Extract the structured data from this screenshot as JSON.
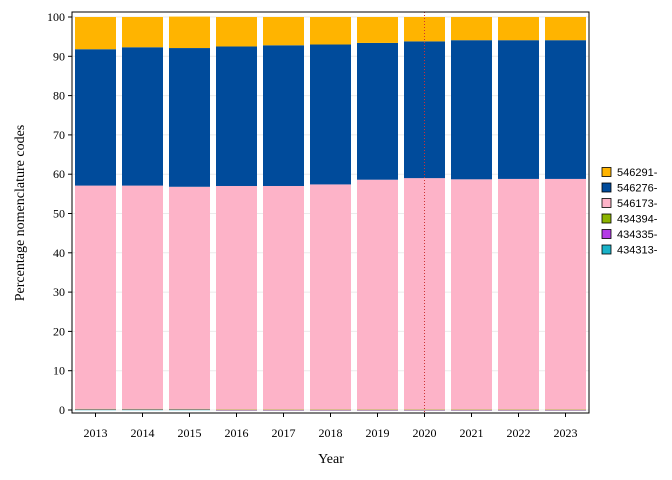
{
  "chart_data": {
    "type": "bar",
    "stacked": true,
    "xlabel": "Year",
    "ylabel": "Percentage nomenclature codes",
    "ylim": [
      0,
      100
    ],
    "yticks": [
      0,
      10,
      20,
      30,
      40,
      50,
      60,
      70,
      80,
      90,
      100
    ],
    "grid": true,
    "legend_position": "right",
    "reference_line": {
      "x": "2020",
      "color": "#cc3333",
      "style": "dotted"
    },
    "categories": [
      "2013",
      "2014",
      "2015",
      "2016",
      "2017",
      "2018",
      "2019",
      "2020",
      "2021",
      "2022",
      "2023"
    ],
    "series": [
      {
        "name": "434313-",
        "color": "#1ab2c8",
        "values": [
          0.1,
          0.1,
          0.1,
          0.0,
          0.0,
          0.0,
          0.0,
          0.0,
          0.0,
          0.0,
          0.0
        ]
      },
      {
        "name": "434335-",
        "color": "#b43ce6",
        "values": [
          0.1,
          0.1,
          0.1,
          0.0,
          0.0,
          0.0,
          0.0,
          0.0,
          0.0,
          0.0,
          0.0
        ]
      },
      {
        "name": "434394-",
        "color": "#8cb400",
        "values": [
          0.1,
          0.1,
          0.1,
          0.1,
          0.1,
          0.1,
          0.1,
          0.1,
          0.1,
          0.1,
          0.1
        ]
      },
      {
        "name": "546173-",
        "color": "#fdb3c8",
        "values": [
          56.8,
          56.8,
          56.5,
          56.9,
          56.9,
          57.3,
          58.5,
          58.9,
          58.6,
          58.7,
          58.7
        ]
      },
      {
        "name": "546276-",
        "color": "#004b9b",
        "values": [
          34.7,
          35.2,
          35.3,
          35.5,
          35.8,
          35.6,
          34.8,
          34.8,
          35.4,
          35.3,
          35.3
        ]
      },
      {
        "name": "546291-",
        "color": "#ffb400",
        "values": [
          8.2,
          7.7,
          8.0,
          7.5,
          7.2,
          7.0,
          6.6,
          6.2,
          5.9,
          5.9,
          5.9
        ]
      }
    ]
  }
}
